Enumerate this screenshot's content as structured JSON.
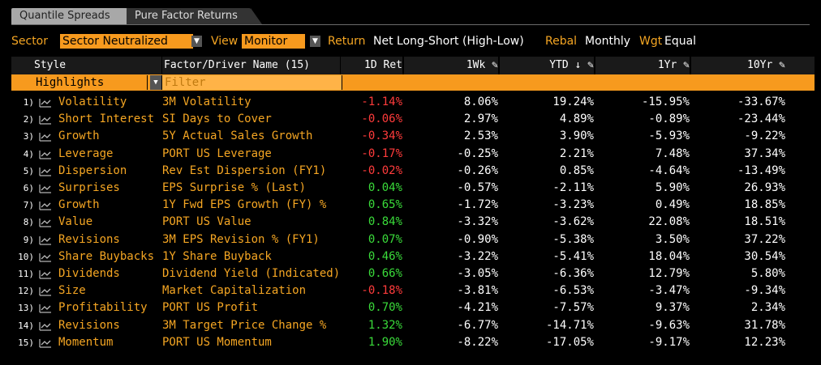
{
  "tabs": [
    {
      "label": "Quantile Spreads",
      "active": true
    },
    {
      "label": "Pure Factor Returns",
      "active": false
    }
  ],
  "toolbar": {
    "sector_label": "Sector",
    "sector_value": "Sector Neutralized",
    "view_label": "View",
    "view_value": "Monitor",
    "return_label": "Return",
    "return_value": "Net Long-Short (High-Low)",
    "rebal_label": "Rebal",
    "rebal_value": "Monthly",
    "wgt_label": "Wgt",
    "wgt_value": "Equal"
  },
  "columns": {
    "style": "Style",
    "factor": "Factor/Driver Name (15)",
    "c1": "1D Ret",
    "c2": "1Wk",
    "c3": "YTD ↓",
    "c4": "1Yr",
    "c5": "10Yr"
  },
  "filterbar": {
    "highlights": "Highlights",
    "filter_placeholder": "Filter"
  },
  "colors": {
    "accent": "#f79a1e",
    "positive": "#3adb3a",
    "negative": "#ff3b3b"
  },
  "rows": [
    {
      "num": "1)",
      "style": "Volatility",
      "factor": "3M Volatility",
      "d1": "-1.14%",
      "w1": "8.06%",
      "ytd": "19.24%",
      "y1": "-15.95%",
      "y10": "-33.67%"
    },
    {
      "num": "2)",
      "style": "Short Interest",
      "factor": "SI Days to Cover",
      "d1": "-0.06%",
      "w1": "2.97%",
      "ytd": "4.89%",
      "y1": "-0.89%",
      "y10": "-23.44%"
    },
    {
      "num": "3)",
      "style": "Growth",
      "factor": "5Y Actual Sales Growth",
      "d1": "-0.34%",
      "w1": "2.53%",
      "ytd": "3.90%",
      "y1": "-5.93%",
      "y10": "-9.22%"
    },
    {
      "num": "4)",
      "style": "Leverage",
      "factor": "PORT US Leverage",
      "d1": "-0.17%",
      "w1": "-0.25%",
      "ytd": "2.21%",
      "y1": "7.48%",
      "y10": "37.34%"
    },
    {
      "num": "5)",
      "style": "Dispersion",
      "factor": "Rev Est Dispersion (FY1)",
      "d1": "-0.02%",
      "w1": "-0.26%",
      "ytd": "0.85%",
      "y1": "-4.64%",
      "y10": "-13.49%"
    },
    {
      "num": "6)",
      "style": "Surprises",
      "factor": "EPS Surprise % (Last)",
      "d1": "0.04%",
      "w1": "-0.57%",
      "ytd": "-2.11%",
      "y1": "5.90%",
      "y10": "26.93%"
    },
    {
      "num": "7)",
      "style": "Growth",
      "factor": "1Y Fwd EPS Growth (FY) %",
      "d1": "0.65%",
      "w1": "-1.72%",
      "ytd": "-3.23%",
      "y1": "0.49%",
      "y10": "18.85%"
    },
    {
      "num": "8)",
      "style": "Value",
      "factor": "PORT US Value",
      "d1": "0.84%",
      "w1": "-3.32%",
      "ytd": "-3.62%",
      "y1": "22.08%",
      "y10": "18.51%"
    },
    {
      "num": "9)",
      "style": "Revisions",
      "factor": "3M EPS Revision % (FY1)",
      "d1": "0.07%",
      "w1": "-0.90%",
      "ytd": "-5.38%",
      "y1": "3.50%",
      "y10": "37.22%"
    },
    {
      "num": "10)",
      "style": "Share Buybacks",
      "factor": "1Y Share Buyback",
      "d1": "0.46%",
      "w1": "-3.22%",
      "ytd": "-5.41%",
      "y1": "18.04%",
      "y10": "30.54%"
    },
    {
      "num": "11)",
      "style": "Dividends",
      "factor": "Dividend Yield (Indicated)",
      "d1": "0.66%",
      "w1": "-3.05%",
      "ytd": "-6.36%",
      "y1": "12.79%",
      "y10": "5.80%"
    },
    {
      "num": "12)",
      "style": "Size",
      "factor": "Market Capitalization",
      "d1": "-0.18%",
      "w1": "-3.81%",
      "ytd": "-6.53%",
      "y1": "-3.47%",
      "y10": "-9.34%"
    },
    {
      "num": "13)",
      "style": "Profitability",
      "factor": "PORT US Profit",
      "d1": "0.70%",
      "w1": "-4.21%",
      "ytd": "-7.57%",
      "y1": "9.37%",
      "y10": "2.34%"
    },
    {
      "num": "14)",
      "style": "Revisions",
      "factor": "3M Target Price Change %",
      "d1": "1.32%",
      "w1": "-6.77%",
      "ytd": "-14.71%",
      "y1": "-9.63%",
      "y10": "31.78%"
    },
    {
      "num": "15)",
      "style": "Momentum",
      "factor": "PORT US Momentum",
      "d1": "1.90%",
      "w1": "-8.22%",
      "ytd": "-17.05%",
      "y1": "-9.17%",
      "y10": "12.23%"
    }
  ]
}
